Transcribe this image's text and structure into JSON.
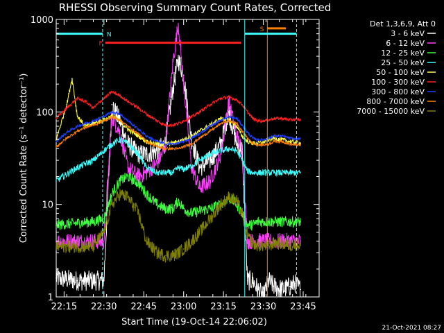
{
  "chart_data": {
    "type": "line",
    "title": "RHESSI Observing Summary Count Rates, Corrected",
    "xlabel": "Start Time (19-Oct-14 22:06:02)",
    "ylabel": "Corrected Count Rate (s⁻¹ detector⁻¹)",
    "ylog": true,
    "ylim": [
      1,
      1000
    ],
    "xlim_min": [
      6.03,
      105
    ],
    "x_ticks": [
      {
        "t": 9,
        "label": "22:15"
      },
      {
        "t": 24,
        "label": "22:30"
      },
      {
        "t": 39,
        "label": "22:45"
      },
      {
        "t": 54,
        "label": "23:00"
      },
      {
        "t": 69,
        "label": "23:15"
      },
      {
        "t": 84,
        "label": "23:30"
      },
      {
        "t": 99,
        "label": "23:45"
      }
    ],
    "y_ticks": [
      {
        "v": 1,
        "label": "1"
      },
      {
        "v": 10,
        "label": "10"
      },
      {
        "v": 100,
        "label": "100"
      },
      {
        "v": 1000,
        "label": "1000"
      }
    ],
    "legend_title": "Det 1,3,6,9, Att 0",
    "legend_position": "right",
    "series": [
      {
        "name": "3 - 6 keV",
        "color": "#ffffff",
        "x": [
          6,
          14,
          20,
          24,
          27,
          30,
          33,
          37,
          40,
          44,
          47,
          50,
          52,
          54,
          57,
          60,
          64,
          68,
          71,
          74,
          76,
          78,
          80,
          82,
          84,
          86,
          88,
          91,
          94,
          96,
          98
        ],
        "y": [
          1.6,
          1.5,
          1.5,
          1.5,
          120,
          80,
          45,
          35,
          35,
          38,
          45,
          180,
          370,
          250,
          50,
          25,
          30,
          45,
          100,
          45,
          40,
          1.5,
          1.5,
          1.2,
          1.0,
          1.5,
          1.3,
          1.2,
          1.3,
          1.4,
          1.2
        ]
      },
      {
        "name": "6 - 12 keV",
        "color": "#ff40ff",
        "x": [
          6,
          14,
          20,
          24,
          27,
          30,
          33,
          37,
          40,
          44,
          47,
          50,
          52,
          54,
          57,
          60,
          64,
          68,
          71,
          74,
          76,
          78,
          80,
          82,
          84,
          86,
          88,
          91,
          94,
          96,
          98
        ],
        "y": [
          4.0,
          4.0,
          4.0,
          4.0,
          90,
          60,
          25,
          20,
          22,
          28,
          40,
          350,
          900,
          200,
          25,
          15,
          18,
          35,
          130,
          55,
          38,
          4.0,
          4.0,
          4.0,
          4.0,
          4.0,
          4.0,
          4.0,
          4.0,
          4.0,
          4.0
        ]
      },
      {
        "name": "12 - 25 keV",
        "color": "#40ff40",
        "x": [
          6,
          14,
          20,
          24,
          27,
          30,
          33,
          37,
          40,
          44,
          47,
          50,
          52,
          54,
          57,
          60,
          64,
          68,
          71,
          74,
          76,
          78,
          80,
          82,
          84,
          86,
          88,
          91,
          94,
          96,
          98
        ],
        "y": [
          6.0,
          6.3,
          6.5,
          7.0,
          13,
          18,
          20,
          17,
          13,
          10,
          9,
          9,
          11,
          9,
          8,
          8.5,
          9,
          10,
          12,
          10,
          8,
          6.0,
          6.0,
          6.5,
          6.5,
          6.5,
          6.5,
          6.5,
          6.5,
          6.5,
          6.5
        ]
      },
      {
        "name": "25 - 50 keV",
        "color": "#40ffff",
        "x": [
          6,
          14,
          20,
          24,
          27,
          30,
          33,
          37,
          40,
          44,
          47,
          50,
          52,
          54,
          57,
          60,
          64,
          68,
          71,
          74,
          76,
          78,
          80,
          82,
          84,
          86,
          88,
          91,
          94,
          96,
          98
        ],
        "y": [
          18,
          25,
          30,
          38,
          45,
          50,
          45,
          35,
          25,
          22,
          22,
          22,
          25,
          24,
          26,
          30,
          35,
          38,
          40,
          38,
          30,
          23,
          22,
          22,
          22,
          22,
          22,
          22,
          22,
          22,
          22
        ]
      },
      {
        "name": "50 - 100 keV",
        "color": "#ffff40",
        "x": [
          6,
          10,
          12,
          14,
          17,
          20,
          24,
          27,
          30,
          33,
          37,
          40,
          44,
          47,
          50,
          52,
          54,
          57,
          60,
          64,
          68,
          71,
          74,
          76,
          78,
          80,
          82,
          84,
          86,
          88,
          91,
          94,
          96,
          98
        ],
        "y": [
          50,
          120,
          230,
          90,
          70,
          75,
          82,
          90,
          80,
          65,
          55,
          48,
          45,
          45,
          46,
          48,
          50,
          55,
          62,
          72,
          85,
          82,
          70,
          55,
          48,
          46,
          46,
          47,
          50,
          52,
          50,
          48,
          47,
          46
        ]
      },
      {
        "name": "100 - 300 keV",
        "color": "#ff2020",
        "x": [
          6,
          10,
          14,
          17,
          20,
          24,
          27,
          30,
          33,
          37,
          40,
          44,
          47,
          50,
          52,
          54,
          57,
          60,
          64,
          68,
          71,
          74,
          76,
          78,
          80,
          82,
          84,
          86,
          88,
          91,
          94,
          96,
          98
        ],
        "y": [
          85,
          110,
          140,
          130,
          110,
          140,
          165,
          150,
          130,
          110,
          95,
          80,
          72,
          72,
          75,
          80,
          88,
          100,
          120,
          140,
          145,
          135,
          120,
          100,
          85,
          80,
          80,
          82,
          85,
          85,
          82,
          83,
          82
        ]
      },
      {
        "name": "300 - 800 keV",
        "color": "#2040ff",
        "x": [
          6,
          10,
          14,
          17,
          20,
          24,
          27,
          30,
          33,
          37,
          40,
          44,
          47,
          50,
          52,
          54,
          57,
          60,
          64,
          68,
          71,
          74,
          76,
          78,
          80,
          82,
          84,
          86,
          88,
          91,
          94,
          96,
          98
        ],
        "y": [
          48,
          60,
          70,
          75,
          80,
          90,
          100,
          95,
          80,
          65,
          55,
          48,
          45,
          45,
          46,
          48,
          52,
          58,
          70,
          82,
          88,
          85,
          72,
          60,
          52,
          50,
          50,
          52,
          55,
          55,
          52,
          51,
          51
        ]
      },
      {
        "name": "800 - 7000 keV",
        "color": "#ff8000",
        "x": [
          6,
          10,
          14,
          17,
          20,
          24,
          27,
          30,
          33,
          37,
          40,
          44,
          47,
          50,
          52,
          54,
          57,
          60,
          64,
          68,
          71,
          74,
          76,
          78,
          80,
          82,
          84,
          86,
          88,
          91,
          94,
          96,
          98
        ],
        "y": [
          42,
          52,
          62,
          68,
          72,
          80,
          88,
          82,
          70,
          58,
          48,
          42,
          40,
          40,
          40,
          42,
          45,
          52,
          62,
          75,
          80,
          75,
          62,
          52,
          46,
          44,
          44,
          45,
          48,
          48,
          45,
          44,
          44
        ]
      },
      {
        "name": "7000 - 15000 keV",
        "color": "#808000",
        "x": [
          6,
          10,
          14,
          17,
          20,
          24,
          27,
          30,
          33,
          37,
          40,
          44,
          47,
          50,
          52,
          54,
          57,
          60,
          64,
          68,
          71,
          74,
          76,
          78,
          80,
          82,
          84,
          86,
          88,
          91,
          94,
          96,
          98
        ],
        "y": [
          3.5,
          3.5,
          3.5,
          3.5,
          3.5,
          5,
          10,
          13,
          12,
          8,
          4,
          3,
          2.8,
          2.8,
          3,
          3.3,
          4,
          5,
          7,
          10,
          12,
          11,
          8,
          4.5,
          3.8,
          3.6,
          3.6,
          3.6,
          3.8,
          3.8,
          3.6,
          3.7,
          3.6
        ]
      }
    ],
    "annotations": [
      {
        "label": "N",
        "color": "#40ffff",
        "x_start": 6.03,
        "x_end": 23.5,
        "y": 700
      },
      {
        "label": "F",
        "color": "#ff2020",
        "x_start": 24.5,
        "x_end": 75.5,
        "y": 560
      },
      {
        "label": "S",
        "color": "#ff8000",
        "x_start": 85.5,
        "x_end": 92.5,
        "y": 800
      },
      {
        "label": "",
        "color": "#40ffff",
        "x_start": 77.0,
        "x_end": 96.5,
        "y": 700
      }
    ],
    "vlines": [
      {
        "x": 23.5,
        "color": "#40ffff",
        "style": "dashed"
      },
      {
        "x": 77.0,
        "color": "#40ffff",
        "style": "solid"
      },
      {
        "x": 85.5,
        "color": "#ff8000",
        "style": "solid"
      },
      {
        "x": 96.5,
        "color": "#40ffff",
        "style": "dashed"
      }
    ]
  },
  "footer": {
    "timestamp": "21-Oct-2021 08:27"
  }
}
